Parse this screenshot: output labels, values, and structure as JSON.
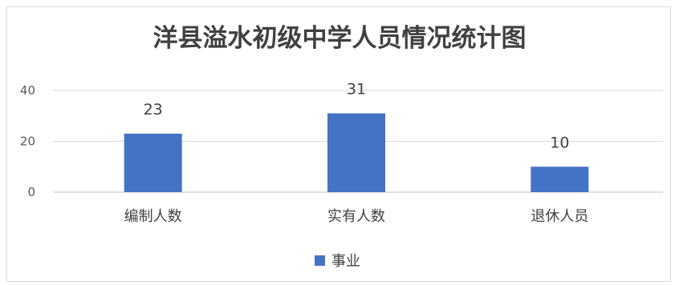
{
  "chart_data": {
    "type": "bar",
    "title": "洋县溢水初级中学人员情况统计图",
    "categories": [
      "编制人数",
      "实有人数",
      "退休人员"
    ],
    "series": [
      {
        "name": "事业",
        "values": [
          23,
          31,
          10
        ],
        "color": "#4472c4"
      }
    ],
    "data_labels": [
      "23",
      "31",
      "10"
    ],
    "yticks": [
      "0",
      "20",
      "40"
    ],
    "ylim": [
      0,
      40
    ],
    "grid": true,
    "legend_position": "bottom"
  }
}
